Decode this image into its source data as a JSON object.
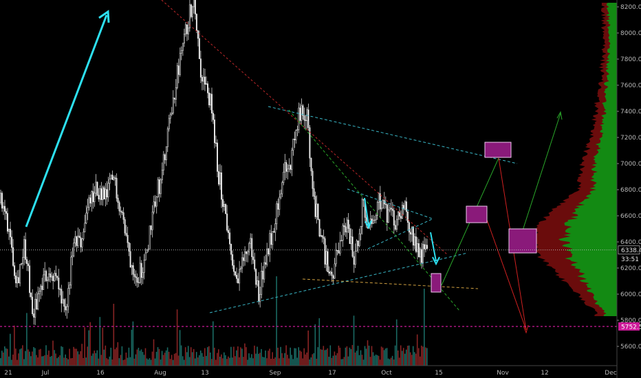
{
  "chart_data": {
    "type": "candlestick",
    "title": "",
    "y_axis": {
      "position": "right",
      "ticks": [
        5600,
        5800,
        6000,
        6200,
        6400,
        6600,
        6800,
        7000,
        7200,
        7400,
        7600,
        7800,
        8000,
        8200
      ],
      "range": [
        5420,
        8270
      ]
    },
    "x_axis": {
      "ticks": [
        "21",
        "Jul",
        "16",
        "Aug",
        "13",
        "Sep",
        "17",
        "Oct",
        "15",
        "Nov",
        "12",
        "Dec"
      ]
    },
    "price_labels": {
      "current": "6338.4",
      "countdown": "33:51",
      "level": "5752.5"
    },
    "price_path": [
      6700,
      6520,
      6100,
      6380,
      5850,
      6050,
      6180,
      6100,
      5800,
      6350,
      6400,
      6700,
      6800,
      6720,
      6900,
      6650,
      6300,
      6150,
      6250,
      6700,
      6900,
      7300,
      7700,
      8000,
      8300,
      7650,
      7500,
      6950,
      6600,
      6100,
      6220,
      6400,
      6000,
      6300,
      6550,
      6900,
      7000,
      7350,
      7400,
      6700,
      6400,
      6100,
      6350,
      6550,
      6250,
      6700,
      6500,
      6750,
      6600,
      6550,
      6680,
      6500,
      6300,
      6350
    ],
    "current_price": 6338.4,
    "support_level": 5752.5,
    "volume_profile": [
      [
        5700,
        0.05
      ],
      [
        5900,
        0.25
      ],
      [
        6100,
        0.55
      ],
      [
        6300,
        0.85
      ],
      [
        6450,
        0.9
      ],
      [
        6600,
        0.75
      ],
      [
        6800,
        0.4
      ],
      [
        7000,
        0.35
      ],
      [
        7200,
        0.25
      ],
      [
        7400,
        0.2
      ],
      [
        7600,
        0.15
      ],
      [
        7800,
        0.12
      ],
      [
        8000,
        0.1
      ],
      [
        8200,
        0.12
      ]
    ],
    "colors": {
      "background": "#000000",
      "up": "#e0e0e0",
      "down": "#e0e0e0",
      "volume_up": "#1e7c74",
      "volume_down": "#a02a2a",
      "profile_green": "#138a13",
      "profile_red": "#6a0c0c",
      "cyan": "#2de0f0",
      "magenta_box": "#8a1a7a",
      "level_line": "#cc1a99"
    }
  }
}
